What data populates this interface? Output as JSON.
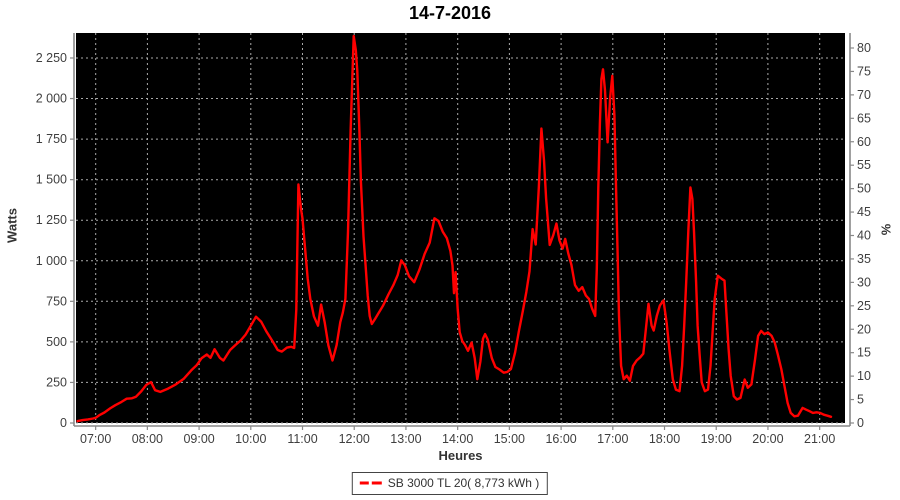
{
  "title": "14-7-2016",
  "legend": {
    "label": "SB 3000 TL 20( 8,773 kWh )",
    "line_color": "#ff0000"
  },
  "colors": {
    "plot_background": "#000000",
    "gridline": "#aaaaaa",
    "series_line": "#ff0000",
    "axis_line": "#888888",
    "tick_text": "#3f3f3f",
    "title_text": "#000000"
  },
  "axes": {
    "y_left": {
      "label": "Watts",
      "tick_labels": [
        "0",
        "250",
        "500",
        "750",
        "1 000",
        "1 250",
        "1 500",
        "1 750",
        "2 000",
        "2 250"
      ],
      "tick_values": [
        0,
        250,
        500,
        750,
        1000,
        1250,
        1500,
        1750,
        2000,
        2250
      ]
    },
    "y_right": {
      "label": "%",
      "tick_labels": [
        "0",
        "5",
        "10",
        "15",
        "20",
        "25",
        "30",
        "35",
        "40",
        "45",
        "50",
        "55",
        "60",
        "65",
        "70",
        "75",
        "80"
      ],
      "tick_values": [
        0,
        5,
        10,
        15,
        20,
        25,
        30,
        35,
        40,
        45,
        50,
        55,
        60,
        65,
        70,
        75,
        80
      ]
    },
    "x": {
      "label": "Heures",
      "tick_labels": [
        "07:00",
        "08:00",
        "09:00",
        "10:00",
        "11:00",
        "12:00",
        "13:00",
        "14:00",
        "15:00",
        "16:00",
        "17:00",
        "18:00",
        "19:00",
        "20:00",
        "21:00"
      ],
      "tick_values": [
        7,
        8,
        9,
        10,
        11,
        12,
        13,
        14,
        15,
        16,
        17,
        18,
        19,
        20,
        21
      ]
    }
  },
  "chart_data": {
    "type": "line",
    "title": "14-7-2016",
    "xlabel": "Heures",
    "ylabel": "Watts",
    "ylabel_right": "%",
    "grid": true,
    "legend_position": "bottom",
    "x_range_hours": [
      6.62,
      21.49
    ],
    "y_left_range": [
      0,
      2404
    ],
    "y_right_range_pct": [
      0,
      83.2
    ],
    "series": [
      {
        "name": "SB 3000 TL 20( 8,773 kWh )",
        "color": "#ff0000",
        "units": "watts vs hour-of-day",
        "points": [
          [
            6.65,
            12
          ],
          [
            6.75,
            18
          ],
          [
            6.85,
            22
          ],
          [
            6.95,
            28
          ],
          [
            7.0,
            32
          ],
          [
            7.08,
            50
          ],
          [
            7.17,
            65
          ],
          [
            7.28,
            90
          ],
          [
            7.38,
            110
          ],
          [
            7.5,
            130
          ],
          [
            7.6,
            150
          ],
          [
            7.7,
            152
          ],
          [
            7.78,
            162
          ],
          [
            7.88,
            195
          ],
          [
            7.98,
            235
          ],
          [
            8.07,
            252
          ],
          [
            8.15,
            202
          ],
          [
            8.25,
            192
          ],
          [
            8.4,
            212
          ],
          [
            8.55,
            238
          ],
          [
            8.7,
            272
          ],
          [
            8.85,
            325
          ],
          [
            8.95,
            355
          ],
          [
            9.05,
            400
          ],
          [
            9.15,
            422
          ],
          [
            9.22,
            402
          ],
          [
            9.3,
            455
          ],
          [
            9.4,
            402
          ],
          [
            9.47,
            385
          ],
          [
            9.6,
            450
          ],
          [
            9.7,
            480
          ],
          [
            9.8,
            508
          ],
          [
            9.9,
            545
          ],
          [
            10.0,
            600
          ],
          [
            10.1,
            655
          ],
          [
            10.2,
            625
          ],
          [
            10.3,
            565
          ],
          [
            10.42,
            505
          ],
          [
            10.52,
            450
          ],
          [
            10.6,
            440
          ],
          [
            10.7,
            465
          ],
          [
            10.78,
            470
          ],
          [
            10.84,
            462
          ],
          [
            10.88,
            700
          ],
          [
            10.92,
            1470
          ],
          [
            10.97,
            1320
          ],
          [
            11.0,
            1260
          ],
          [
            11.05,
            1075
          ],
          [
            11.1,
            890
          ],
          [
            11.15,
            765
          ],
          [
            11.22,
            658
          ],
          [
            11.3,
            600
          ],
          [
            11.36,
            730
          ],
          [
            11.43,
            620
          ],
          [
            11.5,
            478
          ],
          [
            11.58,
            385
          ],
          [
            11.66,
            480
          ],
          [
            11.73,
            622
          ],
          [
            11.78,
            680
          ],
          [
            11.83,
            765
          ],
          [
            11.88,
            1180
          ],
          [
            11.93,
            1800
          ],
          [
            11.99,
            2385
          ],
          [
            12.03,
            2300
          ],
          [
            12.06,
            2170
          ],
          [
            12.1,
            1800
          ],
          [
            12.13,
            1490
          ],
          [
            12.18,
            1150
          ],
          [
            12.22,
            970
          ],
          [
            12.26,
            785
          ],
          [
            12.3,
            660
          ],
          [
            12.34,
            610
          ],
          [
            12.4,
            640
          ],
          [
            12.46,
            672
          ],
          [
            12.56,
            725
          ],
          [
            12.66,
            792
          ],
          [
            12.76,
            852
          ],
          [
            12.84,
            912
          ],
          [
            12.91,
            1002
          ],
          [
            12.98,
            972
          ],
          [
            13.06,
            905
          ],
          [
            13.16,
            868
          ],
          [
            13.26,
            945
          ],
          [
            13.36,
            1042
          ],
          [
            13.46,
            1112
          ],
          [
            13.55,
            1262
          ],
          [
            13.63,
            1245
          ],
          [
            13.71,
            1180
          ],
          [
            13.79,
            1140
          ],
          [
            13.86,
            1060
          ],
          [
            13.9,
            970
          ],
          [
            13.93,
            800
          ],
          [
            13.96,
            930
          ],
          [
            14.0,
            700
          ],
          [
            14.04,
            560
          ],
          [
            14.09,
            505
          ],
          [
            14.14,
            482
          ],
          [
            14.2,
            445
          ],
          [
            14.27,
            496
          ],
          [
            14.33,
            400
          ],
          [
            14.38,
            270
          ],
          [
            14.44,
            380
          ],
          [
            14.49,
            520
          ],
          [
            14.53,
            548
          ],
          [
            14.58,
            515
          ],
          [
            14.66,
            400
          ],
          [
            14.73,
            345
          ],
          [
            14.81,
            330
          ],
          [
            14.89,
            310
          ],
          [
            14.96,
            315
          ],
          [
            15.03,
            332
          ],
          [
            15.11,
            435
          ],
          [
            15.18,
            560
          ],
          [
            15.26,
            690
          ],
          [
            15.33,
            810
          ],
          [
            15.39,
            935
          ],
          [
            15.45,
            1195
          ],
          [
            15.51,
            1100
          ],
          [
            15.57,
            1450
          ],
          [
            15.62,
            1815
          ],
          [
            15.67,
            1620
          ],
          [
            15.71,
            1385
          ],
          [
            15.78,
            1098
          ],
          [
            15.85,
            1158
          ],
          [
            15.91,
            1230
          ],
          [
            15.97,
            1125
          ],
          [
            16.03,
            1075
          ],
          [
            16.08,
            1135
          ],
          [
            16.14,
            1045
          ],
          [
            16.2,
            975
          ],
          [
            16.27,
            850
          ],
          [
            16.34,
            815
          ],
          [
            16.41,
            838
          ],
          [
            16.48,
            785
          ],
          [
            16.54,
            765
          ],
          [
            16.6,
            705
          ],
          [
            16.66,
            660
          ],
          [
            16.69,
            950
          ],
          [
            16.72,
            1450
          ],
          [
            16.75,
            1850
          ],
          [
            16.78,
            2120
          ],
          [
            16.81,
            2180
          ],
          [
            16.85,
            2050
          ],
          [
            16.9,
            1730
          ],
          [
            16.95,
            2010
          ],
          [
            16.99,
            2140
          ],
          [
            17.03,
            1900
          ],
          [
            17.06,
            1490
          ],
          [
            17.09,
            1075
          ],
          [
            17.12,
            660
          ],
          [
            17.16,
            352
          ],
          [
            17.21,
            270
          ],
          [
            17.27,
            292
          ],
          [
            17.33,
            260
          ],
          [
            17.39,
            352
          ],
          [
            17.46,
            385
          ],
          [
            17.53,
            405
          ],
          [
            17.59,
            428
          ],
          [
            17.64,
            580
          ],
          [
            17.69,
            735
          ],
          [
            17.75,
            600
          ],
          [
            17.79,
            570
          ],
          [
            17.85,
            660
          ],
          [
            17.91,
            725
          ],
          [
            17.98,
            755
          ],
          [
            18.04,
            620
          ],
          [
            18.1,
            435
          ],
          [
            18.16,
            270
          ],
          [
            18.22,
            206
          ],
          [
            18.29,
            196
          ],
          [
            18.34,
            352
          ],
          [
            18.38,
            600
          ],
          [
            18.42,
            870
          ],
          [
            18.46,
            1180
          ],
          [
            18.5,
            1452
          ],
          [
            18.54,
            1380
          ],
          [
            18.57,
            1180
          ],
          [
            18.61,
            870
          ],
          [
            18.64,
            600
          ],
          [
            18.68,
            415
          ],
          [
            18.72,
            250
          ],
          [
            18.78,
            196
          ],
          [
            18.84,
            206
          ],
          [
            18.89,
            352
          ],
          [
            18.93,
            560
          ],
          [
            18.97,
            765
          ],
          [
            19.03,
            908
          ],
          [
            19.1,
            890
          ],
          [
            19.16,
            878
          ],
          [
            19.2,
            660
          ],
          [
            19.24,
            455
          ],
          [
            19.28,
            290
          ],
          [
            19.34,
            165
          ],
          [
            19.4,
            145
          ],
          [
            19.47,
            155
          ],
          [
            19.55,
            268
          ],
          [
            19.61,
            217
          ],
          [
            19.68,
            238
          ],
          [
            19.75,
            390
          ],
          [
            19.81,
            537
          ],
          [
            19.87,
            568
          ],
          [
            19.93,
            548
          ],
          [
            20.0,
            558
          ],
          [
            20.07,
            537
          ],
          [
            20.13,
            496
          ],
          [
            20.19,
            423
          ],
          [
            20.26,
            330
          ],
          [
            20.32,
            227
          ],
          [
            20.38,
            124
          ],
          [
            20.44,
            62
          ],
          [
            20.51,
            41
          ],
          [
            20.58,
            45
          ],
          [
            20.67,
            93
          ],
          [
            20.74,
            82
          ],
          [
            20.81,
            72
          ],
          [
            20.87,
            62
          ],
          [
            20.94,
            66
          ],
          [
            21.01,
            62
          ],
          [
            21.08,
            51
          ],
          [
            21.15,
            45
          ],
          [
            21.22,
            38
          ]
        ]
      }
    ]
  }
}
